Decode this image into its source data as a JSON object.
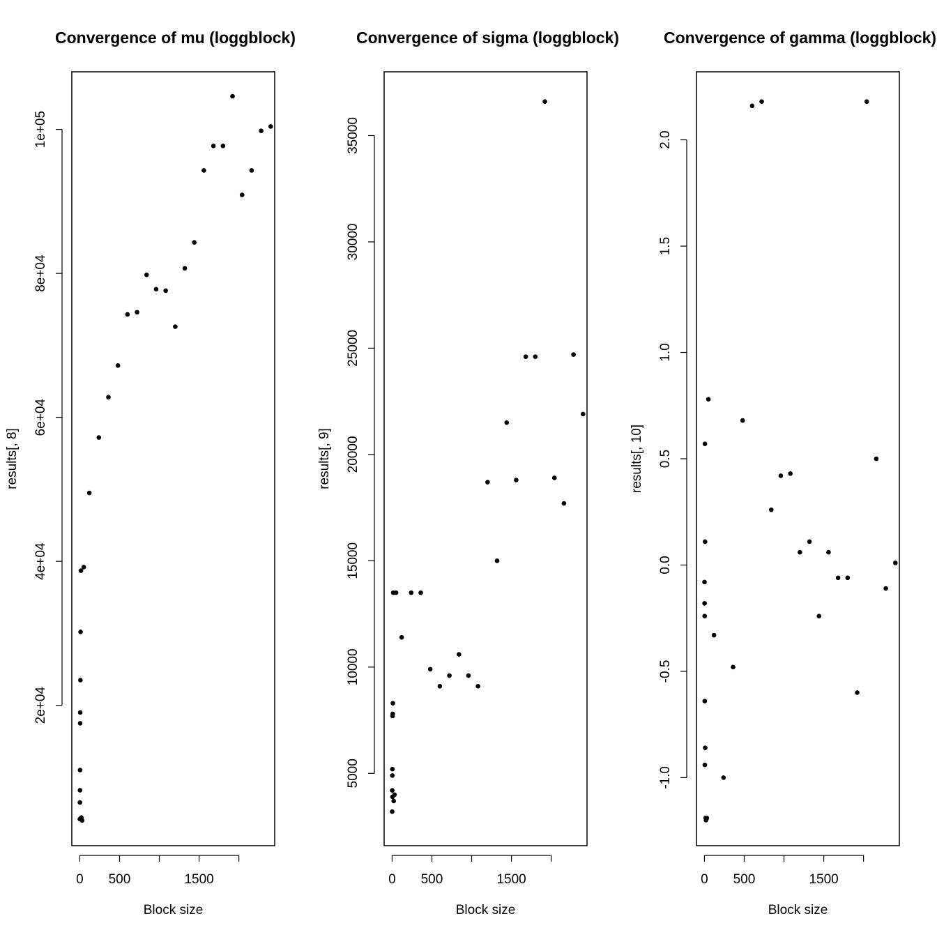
{
  "chart_data": [
    {
      "type": "scatter",
      "title": "Convergence of mu (loggblock)",
      "xlabel": "Block size",
      "ylabel": "results[, 8]",
      "xlim": [
        -100,
        2450
      ],
      "ylim": [
        500,
        108000
      ],
      "xticks": [
        0,
        500,
        1000,
        1500,
        2000
      ],
      "xtick_labels": [
        "0",
        "500",
        "",
        "1500",
        ""
      ],
      "yticks": [
        20000,
        40000,
        60000,
        80000,
        100000
      ],
      "ytick_labels": [
        "2e+04",
        "4e+04",
        "6e+04",
        "8e+04",
        "1e+05"
      ],
      "x": [
        1,
        2,
        3,
        4,
        5,
        6,
        8,
        10,
        15,
        20,
        30,
        50,
        120,
        240,
        360,
        480,
        600,
        720,
        840,
        960,
        1080,
        1200,
        1320,
        1440,
        1560,
        1680,
        1800,
        1920,
        2040,
        2160,
        2280,
        2400
      ],
      "y": [
        4200,
        6500,
        8200,
        11000,
        17500,
        19000,
        23500,
        30200,
        38700,
        4400,
        4000,
        39200,
        49500,
        57200,
        62800,
        67200,
        74300,
        74600,
        79800,
        77800,
        77600,
        72600,
        80700,
        84300,
        94300,
        97700,
        97700,
        104600,
        90900,
        94300,
        99800,
        100400
      ]
    },
    {
      "type": "scatter",
      "title": "Convergence of sigma (loggblock)",
      "xlabel": "Block size",
      "ylabel": "results[, 9]",
      "xlim": [
        -100,
        2450
      ],
      "ylim": [
        1600,
        38000
      ],
      "xticks": [
        0,
        500,
        1000,
        1500,
        2000
      ],
      "xtick_labels": [
        "0",
        "500",
        "",
        "1500",
        ""
      ],
      "yticks": [
        5000,
        10000,
        15000,
        20000,
        25000,
        30000,
        35000
      ],
      "ytick_labels": [
        "5000",
        "10000",
        "15000",
        "20000",
        "25000",
        "30000",
        "35000"
      ],
      "x": [
        1,
        2,
        3,
        4,
        5,
        6,
        8,
        10,
        15,
        20,
        30,
        50,
        120,
        240,
        360,
        480,
        600,
        720,
        840,
        960,
        1080,
        1200,
        1320,
        1440,
        1560,
        1680,
        1800,
        1920,
        2040,
        2160,
        2280,
        2400
      ],
      "y": [
        3200,
        4200,
        4900,
        5200,
        3900,
        7700,
        7800,
        8300,
        13500,
        3700,
        4000,
        13500,
        11400,
        13500,
        13500,
        9900,
        9100,
        9600,
        10600,
        9600,
        9100,
        18700,
        15000,
        21500,
        18800,
        24600,
        24600,
        36600,
        18900,
        17700,
        24700,
        21900
      ]
    },
    {
      "type": "scatter",
      "title": "Convergence of gamma (loggblock)",
      "xlabel": "Block size",
      "ylabel": "results[, 10]",
      "xlim": [
        -100,
        2450
      ],
      "ylim": [
        -1.32,
        2.32
      ],
      "xticks": [
        0,
        500,
        1000,
        1500,
        2000
      ],
      "xtick_labels": [
        "0",
        "500",
        "",
        "1500",
        ""
      ],
      "yticks": [
        -1.0,
        -0.5,
        0.0,
        0.5,
        1.0,
        1.5,
        2.0
      ],
      "ytick_labels": [
        "-1.0",
        "-0.5",
        "0.0",
        "0.5",
        "1.0",
        "1.5",
        "2.0"
      ],
      "x": [
        1,
        2,
        3,
        4,
        5,
        6,
        8,
        10,
        15,
        20,
        30,
        50,
        120,
        240,
        360,
        480,
        600,
        720,
        840,
        960,
        1080,
        1200,
        1320,
        1440,
        1560,
        1680,
        1800,
        1920,
        2040,
        2160,
        2280,
        2400
      ],
      "y": [
        -0.08,
        -0.18,
        -0.24,
        -0.64,
        -0.94,
        0.57,
        0.11,
        -0.86,
        -1.19,
        -1.2,
        -1.19,
        0.78,
        -0.33,
        -1.0,
        -0.48,
        0.68,
        2.16,
        2.18,
        0.26,
        0.42,
        0.43,
        0.06,
        0.11,
        -0.24,
        0.06,
        -0.06,
        -0.06,
        -0.6,
        2.18,
        0.5,
        -0.11,
        0.01
      ]
    }
  ]
}
